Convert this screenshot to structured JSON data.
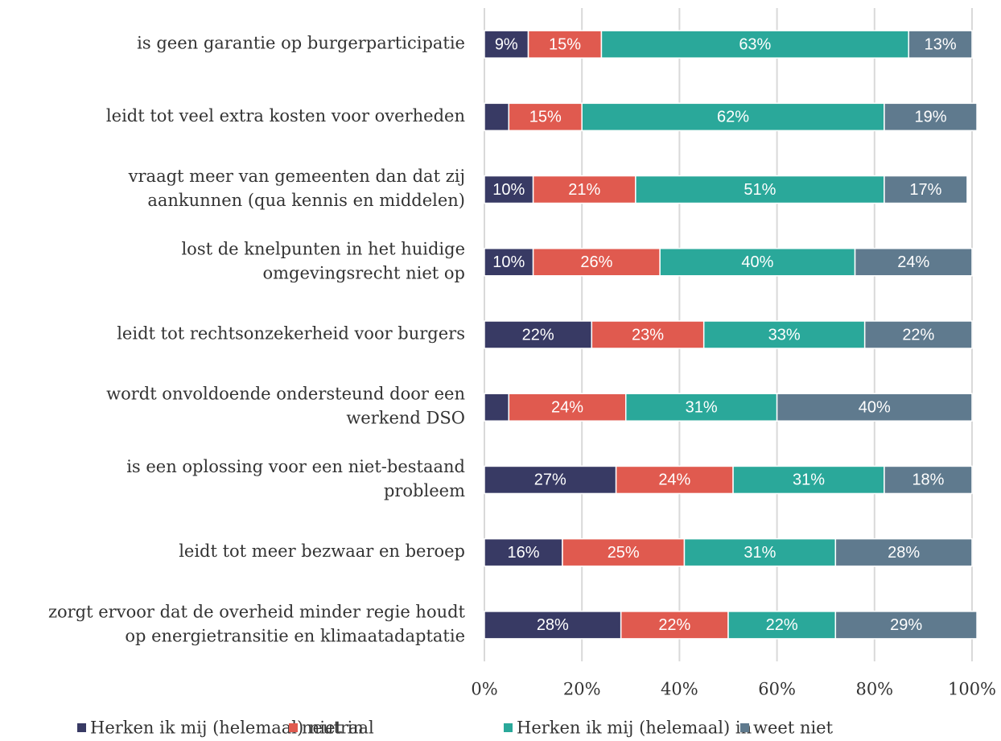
{
  "chart_data": {
    "type": "stacked_barh",
    "categories": [
      [
        "is geen garantie op burgerparticipatie"
      ],
      [
        "leidt tot veel extra kosten voor overheden"
      ],
      [
        "vraagt meer van gemeenten dan dat zij",
        "aankunnen (qua kennis en middelen)"
      ],
      [
        "lost de knelpunten in het huidige",
        "omgevingsrecht niet op"
      ],
      [
        "leidt tot rechtsonzekerheid voor burgers"
      ],
      [
        "wordt onvoldoende ondersteund door een",
        "werkend DSO"
      ],
      [
        "is een oplossing voor een niet-bestaand",
        "probleem"
      ],
      [
        "leidt tot meer bezwaar en beroep"
      ],
      [
        "zorgt ervoor dat de overheid minder regie houdt",
        "op energietransitie en klimaatadaptatie"
      ]
    ],
    "series": [
      {
        "name": "Herken ik mij (helemaal) niet in",
        "color": "#383a64",
        "values": [
          9,
          5,
          10,
          10,
          22,
          5,
          27,
          16,
          28
        ],
        "value_labels": [
          "9%",
          null,
          "10%",
          "10%",
          "22%",
          null,
          "27%",
          "16%",
          "28%"
        ]
      },
      {
        "name": "neutraal",
        "color": "#e05a4f",
        "values": [
          15,
          15,
          21,
          26,
          23,
          24,
          24,
          25,
          22
        ],
        "value_labels": [
          "15%",
          "15%",
          "21%",
          "26%",
          "23%",
          "24%",
          "24%",
          "25%",
          "22%"
        ]
      },
      {
        "name": "Herken ik mij (helemaal) in",
        "color": "#2aa89a",
        "values": [
          63,
          62,
          51,
          40,
          33,
          31,
          31,
          31,
          22
        ],
        "value_labels": [
          "63%",
          "62%",
          "51%",
          "40%",
          "33%",
          "31%",
          "31%",
          "31%",
          "22%"
        ]
      },
      {
        "name": "weet niet",
        "color": "#5f7a8e",
        "values": [
          13,
          19,
          17,
          24,
          22,
          40,
          18,
          28,
          29
        ],
        "value_labels": [
          "13%",
          "19%",
          "17%",
          "24%",
          "22%",
          "40%",
          "18%",
          "28%",
          "29%"
        ]
      }
    ],
    "xlim": [
      0,
      100
    ],
    "xticks": [
      {
        "value": 0,
        "label": "0%"
      },
      {
        "value": 20,
        "label": "20%"
      },
      {
        "value": 40,
        "label": "40%"
      },
      {
        "value": 60,
        "label": "60%"
      },
      {
        "value": 80,
        "label": "80%"
      },
      {
        "value": 100,
        "label": "100%"
      }
    ],
    "grid": true,
    "legend": "bottom"
  }
}
